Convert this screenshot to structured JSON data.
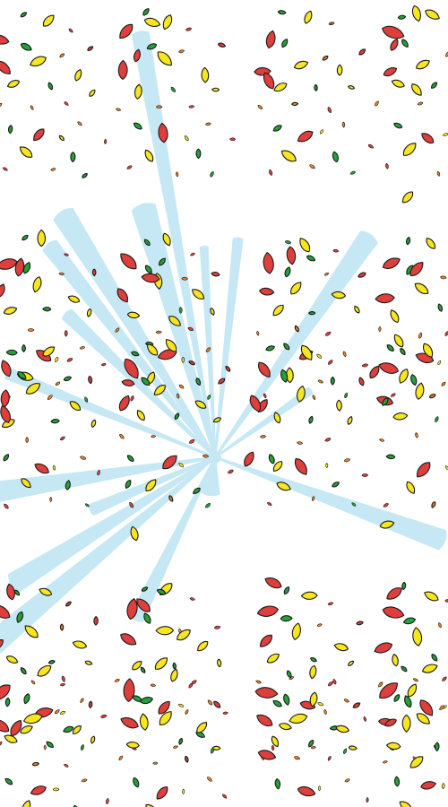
{
  "scene": {
    "background_color": "#ffffff",
    "burst": {
      "color": "#c6e8f5",
      "ray_count": 17
    },
    "confetti": {
      "palette": {
        "yellow": "#f7e51e",
        "red": "#de3f3c",
        "green": "#23a238",
        "orange": "#ee8326"
      }
    }
  }
}
